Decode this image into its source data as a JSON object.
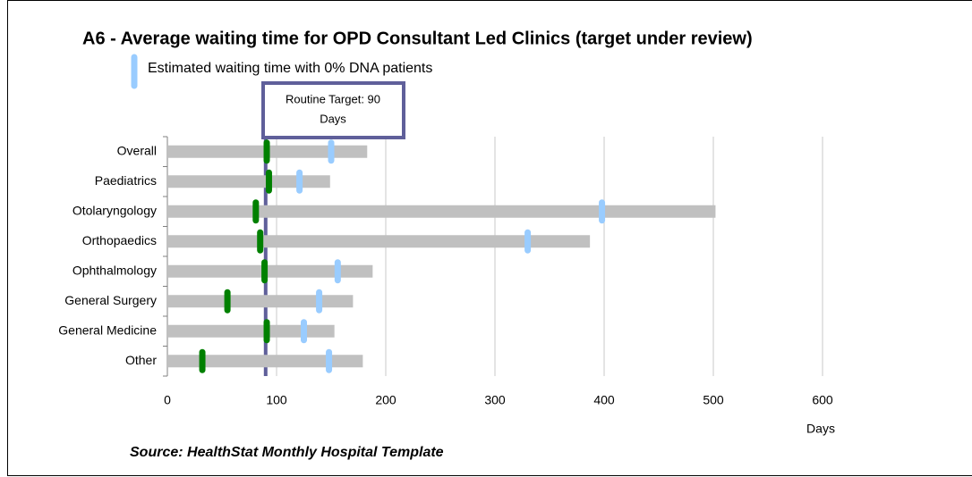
{
  "chart_data": {
    "type": "bar",
    "title": "A6 - Average waiting time for OPD Consultant Led Clinics (target under review)",
    "categories": [
      "Overall",
      "Paediatrics",
      "Otolaryngology",
      "Orthopaedics",
      "Ophthalmology",
      "General Surgery",
      "General Medicine",
      "Other"
    ],
    "series": [
      {
        "color": "#c0c0c0",
        "kind": "bar",
        "values": [
          183,
          149,
          502,
          387,
          188,
          170,
          153,
          179
        ]
      },
      {
        "color": "#008000",
        "kind": "marker",
        "values": [
          91,
          93,
          81,
          85,
          89,
          55,
          91,
          32
        ]
      },
      {
        "name": "Estimated waiting time with 0% DNA patients",
        "color": "#99ccff",
        "kind": "marker",
        "values": [
          150,
          121,
          398,
          330,
          156,
          139,
          125,
          148
        ]
      }
    ],
    "xlim": [
      0,
      600
    ],
    "xticks": [
      0,
      100,
      200,
      300,
      400,
      500,
      600
    ],
    "xlabel": "Days",
    "grid": true,
    "annotation": {
      "text": [
        "Routine Target: 90",
        "Days"
      ],
      "value": 90,
      "color": "#5f5f9a"
    },
    "source": "Source: HealthStat Monthly Hospital Template"
  }
}
